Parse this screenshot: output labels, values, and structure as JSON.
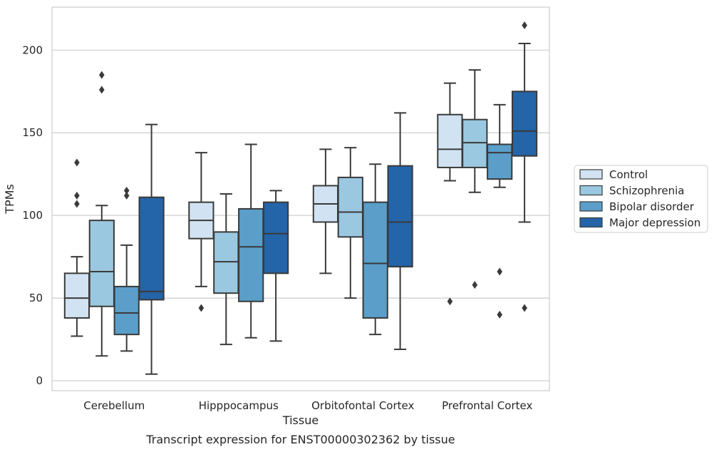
{
  "chart_data": {
    "type": "box",
    "xlabel": "Tissue",
    "ylabel": "TPMs",
    "caption": "Transcript expression for ENST00000302362 by tissue",
    "ylim": [
      -6,
      226
    ],
    "yticks": [
      0,
      50,
      100,
      150,
      200
    ],
    "grid": "horizontal",
    "legend_position": "right",
    "categories": [
      "Cerebellum",
      "Hipppocampus",
      "Orbitofontal Cortex",
      "Prefrontal Cortex"
    ],
    "series": [
      {
        "name": "Control",
        "color": "#d1e2f2",
        "boxes": [
          {
            "whislo": 27,
            "q1": 38,
            "med": 50,
            "q3": 65,
            "whishi": 75,
            "fliers": [
              107,
              112,
              132
            ]
          },
          {
            "whislo": 57,
            "q1": 86,
            "med": 97,
            "q3": 108,
            "whishi": 138,
            "fliers": [
              44
            ]
          },
          {
            "whislo": 65,
            "q1": 96,
            "med": 107,
            "q3": 118,
            "whishi": 140,
            "fliers": []
          },
          {
            "whislo": 121,
            "q1": 129,
            "med": 140,
            "q3": 161,
            "whishi": 180,
            "fliers": [
              48
            ]
          }
        ]
      },
      {
        "name": "Schizophrenia",
        "color": "#9ac8e0",
        "boxes": [
          {
            "whislo": 15,
            "q1": 45,
            "med": 66,
            "q3": 97,
            "whishi": 106,
            "fliers": [
              176,
              185
            ]
          },
          {
            "whislo": 22,
            "q1": 53,
            "med": 72,
            "q3": 90,
            "whishi": 113,
            "fliers": []
          },
          {
            "whislo": 50,
            "q1": 87,
            "med": 102,
            "q3": 123,
            "whishi": 141,
            "fliers": []
          },
          {
            "whislo": 114,
            "q1": 129,
            "med": 144,
            "q3": 158,
            "whishi": 188,
            "fliers": [
              58
            ]
          }
        ]
      },
      {
        "name": "Bipolar disorder",
        "color": "#5a9ec9",
        "boxes": [
          {
            "whislo": 18,
            "q1": 28,
            "med": 41,
            "q3": 57,
            "whishi": 82,
            "fliers": [
              112,
              115
            ]
          },
          {
            "whislo": 26,
            "q1": 48,
            "med": 81,
            "q3": 104,
            "whishi": 143,
            "fliers": []
          },
          {
            "whislo": 28,
            "q1": 38,
            "med": 71,
            "q3": 108,
            "whishi": 131,
            "fliers": []
          },
          {
            "whislo": 117,
            "q1": 122,
            "med": 138,
            "q3": 143,
            "whishi": 167,
            "fliers": [
              40,
              66
            ]
          }
        ]
      },
      {
        "name": "Major depression",
        "color": "#2464a8",
        "boxes": [
          {
            "whislo": 4,
            "q1": 49,
            "med": 54,
            "q3": 111,
            "whishi": 155,
            "fliers": []
          },
          {
            "whislo": 24,
            "q1": 65,
            "med": 89,
            "q3": 108,
            "whishi": 115,
            "fliers": []
          },
          {
            "whislo": 19,
            "q1": 69,
            "med": 96,
            "q3": 130,
            "whishi": 162,
            "fliers": []
          },
          {
            "whislo": 96,
            "q1": 136,
            "med": 151,
            "q3": 175,
            "whishi": 204,
            "fliers": [
              44,
              215
            ]
          }
        ]
      }
    ]
  }
}
